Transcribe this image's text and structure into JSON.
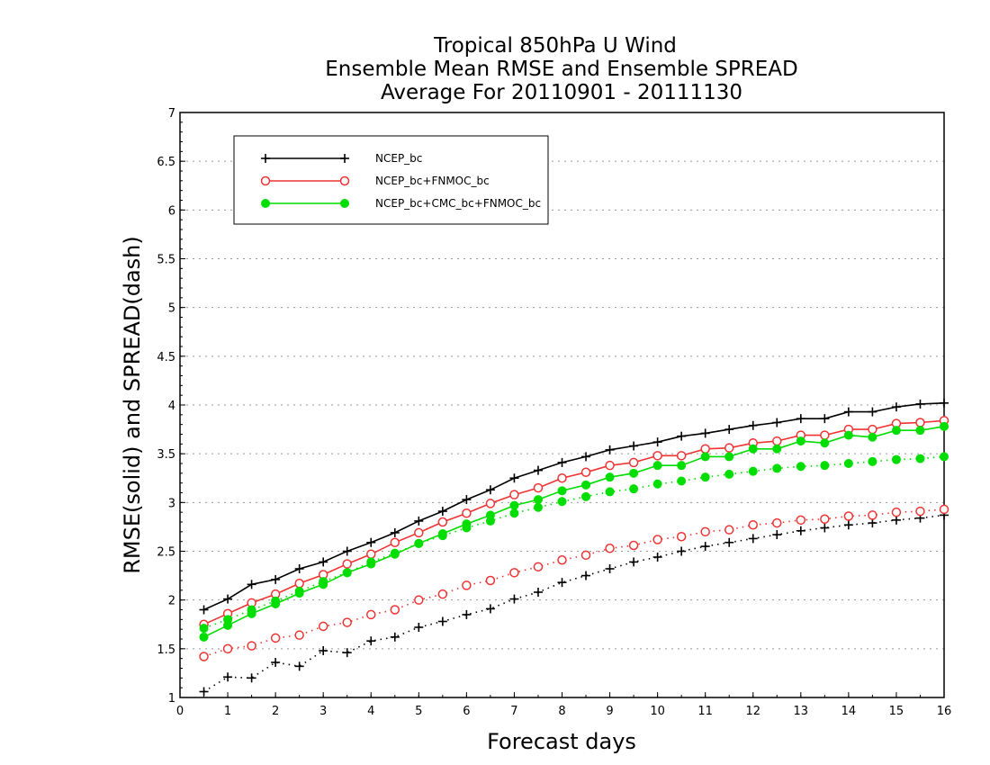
{
  "chart_data": {
    "type": "line",
    "title_lines": [
      "Tropical 850hPa U Wind",
      "Ensemble Mean RMSE and Ensemble SPREAD",
      "Average For 20110901 - 20111130"
    ],
    "xlabel": "Forecast days",
    "ylabel": "RMSE(solid) and SPREAD(dash)",
    "xlim": [
      0,
      16
    ],
    "ylim": [
      1,
      7
    ],
    "xticks": [
      "0",
      "1",
      "2",
      "3",
      "4",
      "5",
      "6",
      "7",
      "8",
      "9",
      "10",
      "11",
      "12",
      "13",
      "14",
      "15",
      "16"
    ],
    "yticks": [
      "1",
      "1.5",
      "2",
      "2.5",
      "3",
      "3.5",
      "4",
      "4.5",
      "5",
      "5.5",
      "6",
      "6.5",
      "7"
    ],
    "grid": "horizontal dotted",
    "legend_position": "top-left",
    "x": [
      0.5,
      1,
      1.5,
      2,
      2.5,
      3,
      3.5,
      4,
      4.5,
      5,
      5.5,
      6,
      6.5,
      7,
      7.5,
      8,
      8.5,
      9,
      9.5,
      10,
      10.5,
      11,
      11.5,
      12,
      12.5,
      13,
      13.5,
      14,
      14.5,
      15,
      15.5,
      16
    ],
    "series": [
      {
        "name": "NCEP_bc",
        "color": "#000000",
        "marker": "plus",
        "rmse": [
          1.9,
          2.01,
          2.16,
          2.21,
          2.32,
          2.39,
          2.5,
          2.59,
          2.69,
          2.81,
          2.91,
          3.03,
          3.13,
          3.25,
          3.33,
          3.41,
          3.47,
          3.54,
          3.58,
          3.62,
          3.68,
          3.71,
          3.75,
          3.79,
          3.82,
          3.86,
          3.86,
          3.93,
          3.93,
          3.98,
          4.01,
          4.02
        ],
        "spread": [
          1.06,
          1.21,
          1.2,
          1.36,
          1.32,
          1.48,
          1.46,
          1.58,
          1.62,
          1.72,
          1.78,
          1.85,
          1.91,
          2.01,
          2.08,
          2.18,
          2.25,
          2.32,
          2.39,
          2.44,
          2.5,
          2.55,
          2.59,
          2.63,
          2.67,
          2.71,
          2.74,
          2.77,
          2.79,
          2.82,
          2.84,
          2.87
        ]
      },
      {
        "name": "NCEP_bc+FNMOC_bc",
        "color": "#ee3333",
        "marker": "open-circle",
        "rmse": [
          1.75,
          1.86,
          1.97,
          2.06,
          2.17,
          2.26,
          2.37,
          2.47,
          2.59,
          2.69,
          2.8,
          2.89,
          2.99,
          3.08,
          3.15,
          3.25,
          3.31,
          3.38,
          3.41,
          3.48,
          3.48,
          3.55,
          3.56,
          3.61,
          3.63,
          3.69,
          3.69,
          3.75,
          3.75,
          3.81,
          3.82,
          3.84
        ],
        "spread": [
          1.42,
          1.5,
          1.53,
          1.61,
          1.64,
          1.73,
          1.77,
          1.85,
          1.9,
          2.0,
          2.06,
          2.15,
          2.2,
          2.28,
          2.34,
          2.41,
          2.46,
          2.53,
          2.56,
          2.62,
          2.65,
          2.7,
          2.72,
          2.77,
          2.79,
          2.82,
          2.83,
          2.86,
          2.87,
          2.9,
          2.91,
          2.93
        ]
      },
      {
        "name": "NCEP_bc+CMC_bc+FNMOC_bc",
        "color": "#00dd00",
        "marker": "filled-circle",
        "rmse": [
          1.62,
          1.74,
          1.86,
          1.96,
          2.07,
          2.16,
          2.28,
          2.37,
          2.47,
          2.58,
          2.68,
          2.78,
          2.87,
          2.97,
          3.03,
          3.12,
          3.18,
          3.26,
          3.3,
          3.38,
          3.38,
          3.47,
          3.47,
          3.55,
          3.55,
          3.63,
          3.61,
          3.69,
          3.67,
          3.74,
          3.74,
          3.78
        ],
        "spread": [
          1.71,
          1.8,
          1.9,
          1.99,
          2.09,
          2.19,
          2.28,
          2.39,
          2.48,
          2.58,
          2.66,
          2.74,
          2.81,
          2.89,
          2.95,
          3.01,
          3.06,
          3.11,
          3.14,
          3.19,
          3.22,
          3.26,
          3.29,
          3.32,
          3.35,
          3.37,
          3.38,
          3.4,
          3.42,
          3.44,
          3.45,
          3.47
        ]
      }
    ]
  }
}
